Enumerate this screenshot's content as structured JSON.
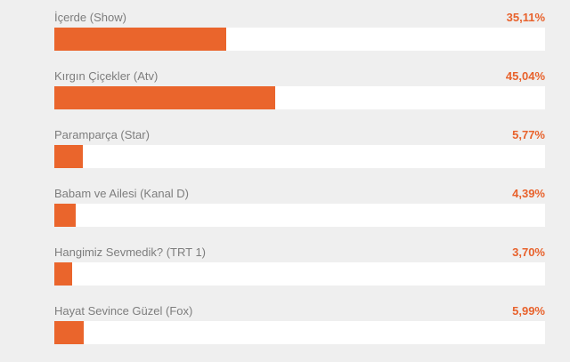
{
  "poll": {
    "options": [
      {
        "label": "İçerde (Show)",
        "percent_text": "35,11%",
        "value": 35.11
      },
      {
        "label": "Kırgın Çiçekler (Atv)",
        "percent_text": "45,04%",
        "value": 45.04
      },
      {
        "label": "Paramparça (Star)",
        "percent_text": "5,77%",
        "value": 5.77
      },
      {
        "label": "Babam ve Ailesi (Kanal D)",
        "percent_text": "4,39%",
        "value": 4.39
      },
      {
        "label": "Hangimiz Sevmedik? (TRT 1)",
        "percent_text": "3,70%",
        "value": 3.7
      },
      {
        "label": "Hayat Sevince Güzel (Fox)",
        "percent_text": "5,99%",
        "value": 5.99
      }
    ],
    "colors": {
      "bar": "#ea652c",
      "percent_text": "#e8622c",
      "label_text": "#7d7d7d",
      "track": "#ffffff",
      "background": "#efefef"
    }
  }
}
